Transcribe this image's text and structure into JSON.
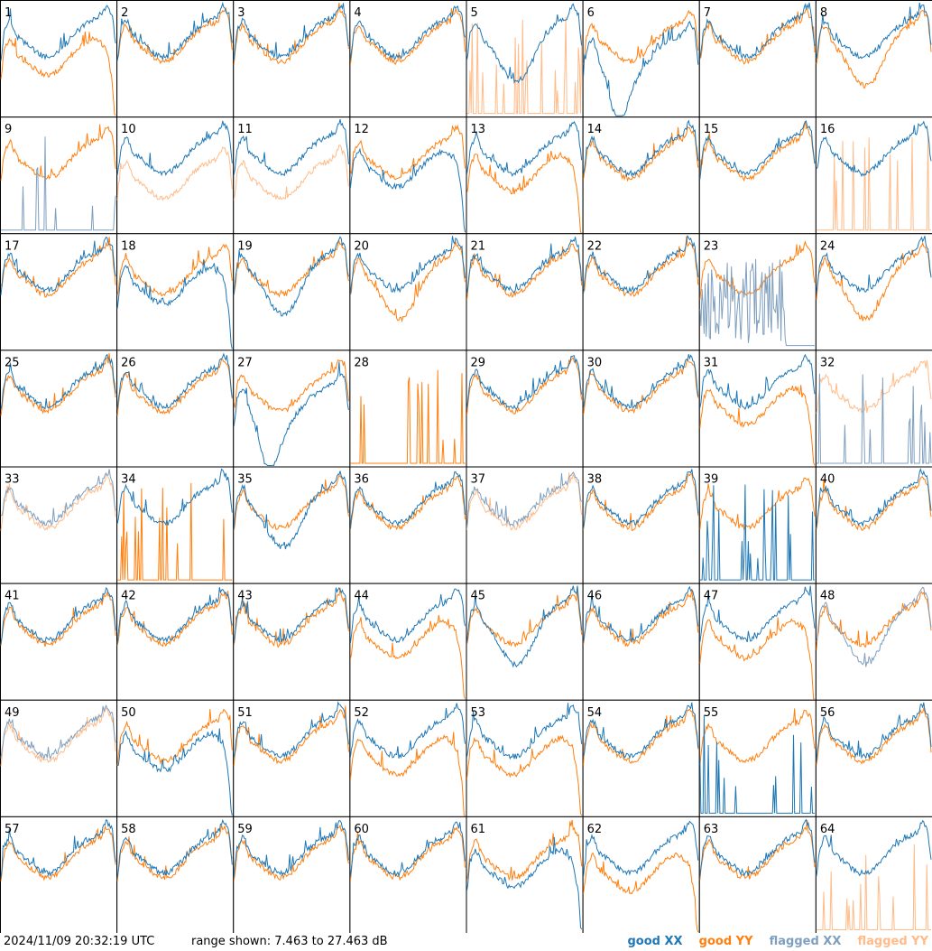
{
  "footer": {
    "timestamp": "2024/11/09 20:32:19 UTC",
    "range_text": "range shown: 7.463 to 27.463 dB",
    "legend": {
      "good_xx": "good XX",
      "good_yy": "good YY",
      "flagged_xx": "flagged XX",
      "flagged_yy": "flagged YY"
    }
  },
  "colors": {
    "good_xx": "#1f77b4",
    "good_yy": "#ff7f0e",
    "flagged_xx": "#7f9fbf",
    "flagged_yy": "#ffbb88",
    "border": "#000000"
  },
  "chart_data": {
    "type": "line",
    "layout": "8x8 small multiples",
    "ylim": [
      7.463,
      27.463
    ],
    "ylabel": "",
    "xlabel": "",
    "panel_labels": [
      "1",
      "2",
      "3",
      "4",
      "5",
      "6",
      "7",
      "8",
      "9",
      "10",
      "11",
      "12",
      "13",
      "14",
      "15",
      "16",
      "17",
      "18",
      "19",
      "20",
      "21",
      "22",
      "23",
      "24",
      "25",
      "26",
      "27",
      "28",
      "29",
      "30",
      "31",
      "32",
      "33",
      "34",
      "35",
      "36",
      "37",
      "38",
      "39",
      "40",
      "41",
      "42",
      "43",
      "44",
      "45",
      "46",
      "47",
      "48",
      "49",
      "50",
      "51",
      "52",
      "53",
      "54",
      "55",
      "56",
      "57",
      "58",
      "59",
      "60",
      "61",
      "62",
      "63",
      "64"
    ],
    "panels": [
      {
        "id": 1,
        "xx": "good",
        "yy": "good",
        "xx_shape": "normal",
        "yy_shape": "drop"
      },
      {
        "id": 2,
        "xx": "good",
        "yy": "good",
        "xx_shape": "normal",
        "yy_shape": "normal"
      },
      {
        "id": 3,
        "xx": "good",
        "yy": "good",
        "xx_shape": "normal",
        "yy_shape": "normal"
      },
      {
        "id": 4,
        "xx": "good",
        "yy": "good",
        "xx_shape": "normal",
        "yy_shape": "normal"
      },
      {
        "id": 5,
        "xx": "good",
        "yy": "flagged",
        "xx_shape": "dip",
        "yy_shape": "spikes"
      },
      {
        "id": 6,
        "xx": "good",
        "yy": "good",
        "xx_shape": "deepdip",
        "yy_shape": "normal"
      },
      {
        "id": 7,
        "xx": "good",
        "yy": "good",
        "xx_shape": "normal",
        "yy_shape": "normal"
      },
      {
        "id": 8,
        "xx": "good",
        "yy": "good",
        "xx_shape": "normal",
        "yy_shape": "dip"
      },
      {
        "id": 9,
        "xx": "flagged",
        "yy": "good",
        "xx_shape": "spikes",
        "yy_shape": "normal"
      },
      {
        "id": 10,
        "xx": "good",
        "yy": "flagged",
        "xx_shape": "normal",
        "yy_shape": "lowdip"
      },
      {
        "id": 11,
        "xx": "good",
        "yy": "flagged",
        "xx_shape": "normal",
        "yy_shape": "lowdip"
      },
      {
        "id": 12,
        "xx": "good",
        "yy": "good",
        "xx_shape": "drop",
        "yy_shape": "normal"
      },
      {
        "id": 13,
        "xx": "good",
        "yy": "good",
        "xx_shape": "normal",
        "yy_shape": "drop"
      },
      {
        "id": 14,
        "xx": "good",
        "yy": "good",
        "xx_shape": "normal",
        "yy_shape": "normal"
      },
      {
        "id": 15,
        "xx": "good",
        "yy": "good",
        "xx_shape": "normal",
        "yy_shape": "normal"
      },
      {
        "id": 16,
        "xx": "good",
        "yy": "flagged",
        "xx_shape": "normal",
        "yy_shape": "spikes"
      },
      {
        "id": 17,
        "xx": "good",
        "yy": "good",
        "xx_shape": "normal",
        "yy_shape": "normal"
      },
      {
        "id": 18,
        "xx": "good",
        "yy": "good",
        "xx_shape": "drop",
        "yy_shape": "normal"
      },
      {
        "id": 19,
        "xx": "good",
        "yy": "good",
        "xx_shape": "dip",
        "yy_shape": "normal"
      },
      {
        "id": 20,
        "xx": "good",
        "yy": "good",
        "xx_shape": "normal",
        "yy_shape": "dip"
      },
      {
        "id": 21,
        "xx": "good",
        "yy": "good",
        "xx_shape": "normal",
        "yy_shape": "normal"
      },
      {
        "id": 22,
        "xx": "good",
        "yy": "good",
        "xx_shape": "normal",
        "yy_shape": "normal"
      },
      {
        "id": 23,
        "xx": "flagged",
        "yy": "good",
        "xx_shape": "noisy",
        "yy_shape": "normal"
      },
      {
        "id": 24,
        "xx": "good",
        "yy": "good",
        "xx_shape": "normal",
        "yy_shape": "dip"
      },
      {
        "id": 25,
        "xx": "good",
        "yy": "good",
        "xx_shape": "normal",
        "yy_shape": "normal"
      },
      {
        "id": 26,
        "xx": "good",
        "yy": "good",
        "xx_shape": "normal",
        "yy_shape": "normal"
      },
      {
        "id": 27,
        "xx": "good",
        "yy": "good",
        "xx_shape": "deepdip",
        "yy_shape": "normal"
      },
      {
        "id": 28,
        "xx": "none",
        "yy": "good",
        "xx_shape": "none",
        "yy_shape": "spikes"
      },
      {
        "id": 29,
        "xx": "good",
        "yy": "good",
        "xx_shape": "normal",
        "yy_shape": "normal"
      },
      {
        "id": 30,
        "xx": "good",
        "yy": "good",
        "xx_shape": "normal",
        "yy_shape": "normal"
      },
      {
        "id": 31,
        "xx": "good",
        "yy": "good",
        "xx_shape": "normal",
        "yy_shape": "drop"
      },
      {
        "id": 32,
        "xx": "flagged",
        "yy": "flagged",
        "xx_shape": "spikes",
        "yy_shape": "normal"
      },
      {
        "id": 33,
        "xx": "flagged",
        "yy": "flagged",
        "xx_shape": "normal",
        "yy_shape": "normal"
      },
      {
        "id": 34,
        "xx": "good",
        "yy": "good",
        "xx_shape": "normal",
        "yy_shape": "spikes"
      },
      {
        "id": 35,
        "xx": "good",
        "yy": "good",
        "xx_shape": "dip",
        "yy_shape": "normal"
      },
      {
        "id": 36,
        "xx": "good",
        "yy": "good",
        "xx_shape": "normal",
        "yy_shape": "normal"
      },
      {
        "id": 37,
        "xx": "flagged",
        "yy": "flagged",
        "xx_shape": "normal",
        "yy_shape": "normal"
      },
      {
        "id": 38,
        "xx": "good",
        "yy": "good",
        "xx_shape": "normal",
        "yy_shape": "normal"
      },
      {
        "id": 39,
        "xx": "good",
        "yy": "good",
        "xx_shape": "spikes",
        "yy_shape": "normal"
      },
      {
        "id": 40,
        "xx": "good",
        "yy": "good",
        "xx_shape": "normal",
        "yy_shape": "normal"
      },
      {
        "id": 41,
        "xx": "good",
        "yy": "good",
        "xx_shape": "normal",
        "yy_shape": "normal"
      },
      {
        "id": 42,
        "xx": "good",
        "yy": "good",
        "xx_shape": "normal",
        "yy_shape": "normal"
      },
      {
        "id": 43,
        "xx": "good",
        "yy": "good",
        "xx_shape": "normal",
        "yy_shape": "normal"
      },
      {
        "id": 44,
        "xx": "good",
        "yy": "good",
        "xx_shape": "normal",
        "yy_shape": "drop"
      },
      {
        "id": 45,
        "xx": "good",
        "yy": "good",
        "xx_shape": "dip",
        "yy_shape": "normal"
      },
      {
        "id": 46,
        "xx": "good",
        "yy": "good",
        "xx_shape": "normal",
        "yy_shape": "normal"
      },
      {
        "id": 47,
        "xx": "good",
        "yy": "good",
        "xx_shape": "normal",
        "yy_shape": "drop"
      },
      {
        "id": 48,
        "xx": "flagged",
        "yy": "good",
        "xx_shape": "dip",
        "yy_shape": "normal"
      },
      {
        "id": 49,
        "xx": "flagged",
        "yy": "flagged",
        "xx_shape": "normal",
        "yy_shape": "normal"
      },
      {
        "id": 50,
        "xx": "good",
        "yy": "good",
        "xx_shape": "drop",
        "yy_shape": "normal"
      },
      {
        "id": 51,
        "xx": "good",
        "yy": "good",
        "xx_shape": "normal",
        "yy_shape": "normal"
      },
      {
        "id": 52,
        "xx": "good",
        "yy": "good",
        "xx_shape": "normal",
        "yy_shape": "drop"
      },
      {
        "id": 53,
        "xx": "good",
        "yy": "good",
        "xx_shape": "normal",
        "yy_shape": "drop"
      },
      {
        "id": 54,
        "xx": "good",
        "yy": "good",
        "xx_shape": "normal",
        "yy_shape": "normal"
      },
      {
        "id": 55,
        "xx": "good",
        "yy": "good",
        "xx_shape": "spikes",
        "yy_shape": "normal"
      },
      {
        "id": 56,
        "xx": "good",
        "yy": "good",
        "xx_shape": "normal",
        "yy_shape": "normal"
      },
      {
        "id": 57,
        "xx": "good",
        "yy": "good",
        "xx_shape": "normal",
        "yy_shape": "normal"
      },
      {
        "id": 58,
        "xx": "good",
        "yy": "good",
        "xx_shape": "normal",
        "yy_shape": "normal"
      },
      {
        "id": 59,
        "xx": "good",
        "yy": "good",
        "xx_shape": "normal",
        "yy_shape": "normal"
      },
      {
        "id": 60,
        "xx": "good",
        "yy": "good",
        "xx_shape": "normal",
        "yy_shape": "normal"
      },
      {
        "id": 61,
        "xx": "good",
        "yy": "good",
        "xx_shape": "drop",
        "yy_shape": "normal"
      },
      {
        "id": 62,
        "xx": "good",
        "yy": "good",
        "xx_shape": "normal",
        "yy_shape": "drop"
      },
      {
        "id": 63,
        "xx": "good",
        "yy": "good",
        "xx_shape": "normal",
        "yy_shape": "normal"
      },
      {
        "id": 64,
        "xx": "good",
        "yy": "flagged",
        "xx_shape": "normal",
        "yy_shape": "spikes"
      }
    ]
  }
}
